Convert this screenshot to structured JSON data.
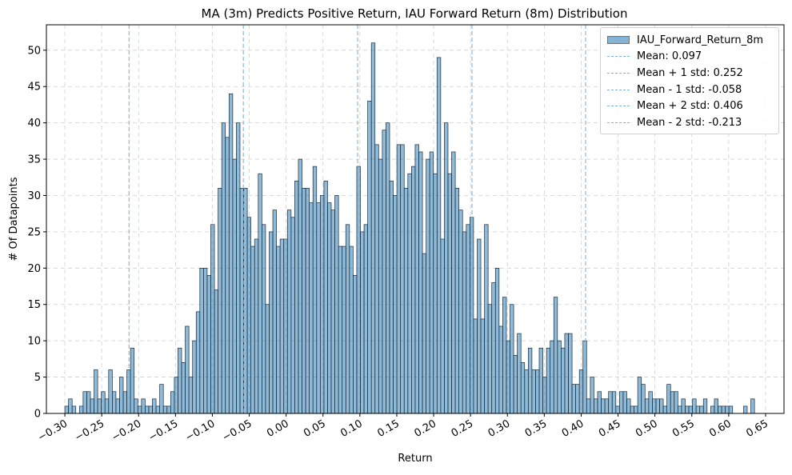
{
  "chart_data": {
    "type": "bar",
    "title": "MA (3m) Predicts Positive Return, IAU Forward Return (8m) Distribution",
    "xlabel": "Return",
    "ylabel": "# Of Datapoints",
    "xlim": [
      -0.325,
      0.675
    ],
    "ylim": [
      0,
      53.5
    ],
    "grid": true,
    "legend_placement": "upper right",
    "bar_color": "#1f77b4",
    "line_color": "#1f77b4",
    "x_ticks": [
      -0.3,
      -0.25,
      -0.2,
      -0.15,
      -0.1,
      -0.05,
      0.0,
      0.05,
      0.1,
      0.15,
      0.2,
      0.25,
      0.3,
      0.35,
      0.4,
      0.45,
      0.5,
      0.55,
      0.6,
      0.65
    ],
    "x_tick_labels": [
      "−0.30",
      "−0.25",
      "−0.20",
      "−0.15",
      "−0.10",
      "−0.05",
      "0.00",
      "0.05",
      "0.10",
      "0.15",
      "0.20",
      "0.25",
      "0.30",
      "0.35",
      "0.40",
      "0.45",
      "0.50",
      "0.55",
      "0.60",
      "0.65"
    ],
    "y_ticks": [
      0,
      5,
      10,
      15,
      20,
      25,
      30,
      35,
      40,
      45,
      50
    ],
    "y_tick_labels": [
      "0",
      "5",
      "10",
      "15",
      "20",
      "25",
      "30",
      "35",
      "40",
      "45",
      "50"
    ],
    "series": [
      {
        "name": "IAU_Forward_Return_8m",
        "bin_start": -0.3,
        "bin_end": 0.635,
        "values": [
          1,
          2,
          1,
          0,
          1,
          3,
          3,
          2,
          6,
          2,
          3,
          2,
          6,
          3,
          2,
          5,
          3,
          6,
          9,
          2,
          1,
          2,
          1,
          1,
          2,
          1,
          4,
          1,
          1,
          3,
          5,
          9,
          7,
          12,
          5,
          10,
          14,
          20,
          20,
          19,
          26,
          17,
          31,
          40,
          38,
          44,
          35,
          40,
          31,
          31,
          27,
          23,
          24,
          33,
          26,
          15,
          25,
          28,
          23,
          24,
          24,
          28,
          27,
          32,
          35,
          31,
          31,
          29,
          34,
          29,
          30,
          32,
          29,
          28,
          30,
          23,
          23,
          26,
          23,
          19,
          34,
          25,
          26,
          43,
          51,
          37,
          35,
          39,
          40,
          32,
          30,
          37,
          37,
          31,
          33,
          34,
          37,
          36,
          22,
          35,
          36,
          33,
          49,
          24,
          40,
          33,
          36,
          31,
          28,
          25,
          26,
          27,
          13,
          24,
          13,
          26,
          15,
          18,
          20,
          12,
          16,
          10,
          15,
          8,
          11,
          7,
          6,
          9,
          6,
          6,
          9,
          5,
          9,
          10,
          16,
          10,
          9,
          11,
          11,
          4,
          4,
          6,
          10,
          2,
          5,
          2,
          3,
          2,
          2,
          3,
          3,
          1,
          3,
          3,
          2,
          1,
          1,
          5,
          4,
          2,
          3,
          2,
          2,
          2,
          1,
          4,
          3,
          3,
          1,
          2,
          1,
          1,
          2,
          1,
          1,
          2,
          0,
          1,
          2,
          1,
          1,
          1,
          1,
          0,
          0,
          0,
          1,
          0,
          2
        ]
      }
    ],
    "reference_lines": [
      {
        "name": "Mean: 0.097",
        "x": 0.097
      },
      {
        "name": "Mean + 1 std: 0.252",
        "x": 0.252
      },
      {
        "name": "Mean - 1 std: -0.058",
        "x": -0.058
      },
      {
        "name": "Mean + 2 std: 0.406",
        "x": 0.406
      },
      {
        "name": "Mean - 2 std: -0.213",
        "x": -0.213
      }
    ]
  }
}
